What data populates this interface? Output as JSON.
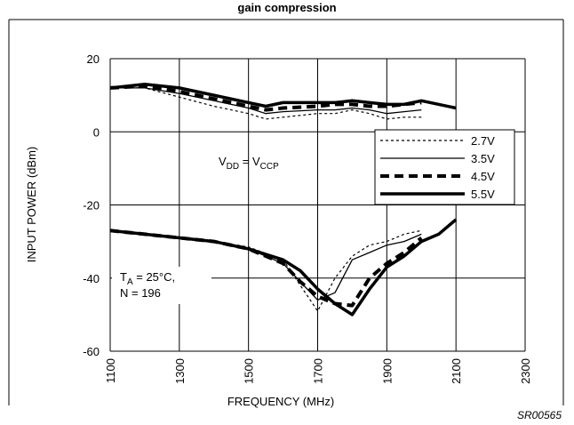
{
  "header": {
    "partial_title": "gain compression"
  },
  "figure_code": "SR00565",
  "chart_data": {
    "type": "line",
    "xlabel": "FREQUENCY (MHz)",
    "ylabel": "INPUT POWER (dBm)",
    "xlim": [
      1100,
      2300
    ],
    "ylim": [
      -60,
      20
    ],
    "x_ticks": [
      1100,
      1300,
      1500,
      1700,
      1900,
      2100,
      2300
    ],
    "y_ticks": [
      -60,
      -40,
      -20,
      0,
      20
    ],
    "grid": true,
    "legend_position": "right",
    "annotations": {
      "vdd": {
        "v1": "V",
        "s1": "DD",
        "eq": " = V",
        "s2": "CCP"
      },
      "ta": {
        "t": "T",
        "s": "A",
        "rest": " = 25°C,"
      },
      "n": "N = 196"
    },
    "series": [
      {
        "name": "2.7V",
        "style": "dotted",
        "width": 1.2,
        "upper": {
          "x": [
            1100,
            1200,
            1300,
            1400,
            1500,
            1550,
            1600,
            1700,
            1750,
            1800,
            1850,
            1900,
            1950,
            2000
          ],
          "y": [
            12,
            12,
            9.5,
            7,
            5,
            3.5,
            4,
            5,
            5,
            6,
            5,
            3.5,
            4,
            4
          ]
        },
        "lower": {
          "x": [
            1100,
            1200,
            1300,
            1400,
            1500,
            1600,
            1650,
            1700,
            1750,
            1800,
            1850,
            1900,
            1950,
            2000
          ],
          "y": [
            -27,
            -28,
            -29,
            -30,
            -31.5,
            -35,
            -42,
            -49,
            -40,
            -34,
            -31,
            -30,
            -28,
            -27
          ]
        }
      },
      {
        "name": "3.5V",
        "style": "solid",
        "width": 1.3,
        "upper": {
          "x": [
            1100,
            1200,
            1300,
            1400,
            1500,
            1550,
            1600,
            1700,
            1750,
            1800,
            1850,
            1900,
            1950,
            2000
          ],
          "y": [
            12,
            12,
            10.5,
            8.5,
            6.5,
            5,
            5.5,
            6,
            6,
            6.5,
            6,
            5,
            5.5,
            6
          ]
        },
        "lower": {
          "x": [
            1100,
            1200,
            1300,
            1400,
            1500,
            1600,
            1650,
            1700,
            1750,
            1800,
            1850,
            1900,
            1950,
            2000
          ],
          "y": [
            -27,
            -28,
            -29,
            -30,
            -32,
            -36,
            -41,
            -46,
            -44,
            -35,
            -33,
            -31,
            -30,
            -28
          ]
        }
      },
      {
        "name": "4.5V",
        "style": "dashed",
        "width": 4,
        "upper": {
          "x": [
            1100,
            1200,
            1300,
            1400,
            1500,
            1550,
            1600,
            1700,
            1750,
            1800,
            1850,
            1900,
            1950,
            2000
          ],
          "y": [
            12,
            12.5,
            11,
            9,
            7,
            6,
            6.5,
            7,
            7.5,
            7.5,
            7,
            7,
            7.5,
            8
          ]
        },
        "lower": {
          "x": [
            1100,
            1200,
            1300,
            1400,
            1500,
            1600,
            1650,
            1700,
            1750,
            1800,
            1850,
            1900,
            1950,
            2000
          ],
          "y": [
            -27,
            -28,
            -29,
            -30,
            -32,
            -36,
            -41,
            -45,
            -47,
            -47.5,
            -40,
            -36,
            -33,
            -29
          ]
        }
      },
      {
        "name": "5.5V",
        "style": "solid",
        "width": 3.5,
        "upper": {
          "x": [
            1100,
            1200,
            1300,
            1400,
            1500,
            1550,
            1600,
            1700,
            1750,
            1800,
            1850,
            1900,
            1950,
            2000,
            2100
          ],
          "y": [
            12,
            13,
            12,
            10,
            8,
            7,
            8,
            8,
            8,
            8.5,
            8,
            7.5,
            7.5,
            8.5,
            6.5
          ]
        },
        "lower": {
          "x": [
            1100,
            1200,
            1300,
            1400,
            1500,
            1600,
            1650,
            1700,
            1750,
            1800,
            1850,
            1900,
            1950,
            2000,
            2050,
            2100
          ],
          "y": [
            -27,
            -28,
            -29,
            -30,
            -32,
            -35,
            -38,
            -43,
            -47,
            -50,
            -43,
            -37,
            -34,
            -30,
            -28,
            -24
          ]
        }
      }
    ]
  }
}
